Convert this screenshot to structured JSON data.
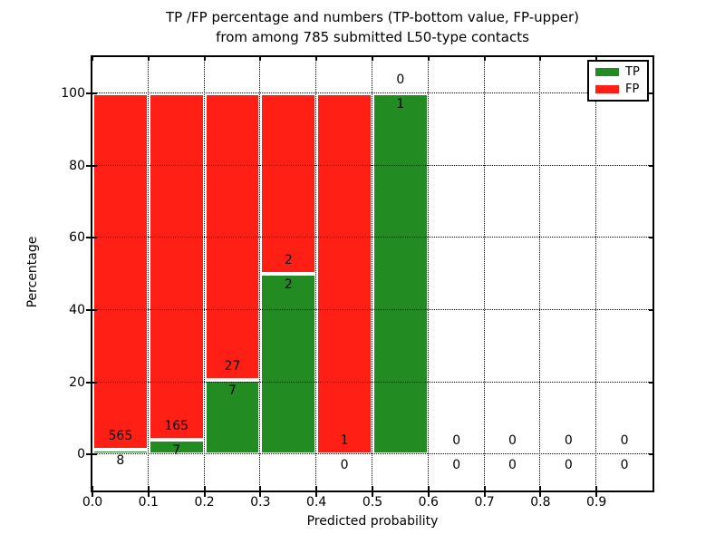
{
  "figure": {
    "title_line1": "TP /FP percentage and numbers (TP-bottom value, FP-upper)",
    "title_line2": "from among 785 submitted L50-type contacts",
    "xlabel": "Predicted probability",
    "ylabel": "Percentage"
  },
  "legend": {
    "position": "upper right",
    "items": [
      {
        "label": "TP",
        "color": "#228B22"
      },
      {
        "label": "FP",
        "color": "#FF1F14"
      }
    ]
  },
  "colors": {
    "tp": "#228B22",
    "fp": "#FF1F14",
    "grid": "#000000",
    "background": "#FFFFFF"
  },
  "chart_data": {
    "type": "bar",
    "subtype": "stacked-percentage-histogram",
    "title": "TP /FP percentage and numbers (TP-bottom value, FP-upper) from among 785 submitted L50-type contacts",
    "xlabel": "Predicted probability",
    "ylabel": "Percentage",
    "total_contacts": 785,
    "xlim": [
      0.0,
      1.0
    ],
    "ylim": [
      -10,
      110
    ],
    "xticks": [
      "0.0",
      "0.1",
      "0.2",
      "0.3",
      "0.4",
      "0.5",
      "0.6",
      "0.7",
      "0.8",
      "0.9"
    ],
    "yticks": [
      0,
      20,
      40,
      60,
      80,
      100
    ],
    "grid": true,
    "grid_style": "dotted",
    "legend_position": "upper right",
    "label_convention": "TP count below boundary, FP count above boundary",
    "bins": [
      {
        "range": [
          0.0,
          0.1
        ],
        "tp_count": 8,
        "fp_count": 565,
        "tp_pct": 1.4,
        "fp_pct": 98.6
      },
      {
        "range": [
          0.1,
          0.2
        ],
        "tp_count": 7,
        "fp_count": 165,
        "tp_pct": 4.07,
        "fp_pct": 95.93
      },
      {
        "range": [
          0.2,
          0.3
        ],
        "tp_count": 7,
        "fp_count": 27,
        "tp_pct": 20.59,
        "fp_pct": 79.41
      },
      {
        "range": [
          0.3,
          0.4
        ],
        "tp_count": 2,
        "fp_count": 2,
        "tp_pct": 50.0,
        "fp_pct": 50.0
      },
      {
        "range": [
          0.4,
          0.5
        ],
        "tp_count": 0,
        "fp_count": 1,
        "tp_pct": 0.0,
        "fp_pct": 100.0
      },
      {
        "range": [
          0.5,
          0.6
        ],
        "tp_count": 1,
        "fp_count": 0,
        "tp_pct": 100.0,
        "fp_pct": 0.0
      },
      {
        "range": [
          0.6,
          0.7
        ],
        "tp_count": 0,
        "fp_count": 0,
        "tp_pct": 0.0,
        "fp_pct": 0.0
      },
      {
        "range": [
          0.7,
          0.8
        ],
        "tp_count": 0,
        "fp_count": 0,
        "tp_pct": 0.0,
        "fp_pct": 0.0
      },
      {
        "range": [
          0.8,
          0.9
        ],
        "tp_count": 0,
        "fp_count": 0,
        "tp_pct": 0.0,
        "fp_pct": 0.0
      },
      {
        "range": [
          0.9,
          1.0
        ],
        "tp_count": 0,
        "fp_count": 0,
        "tp_pct": 0.0,
        "fp_pct": 0.0
      }
    ],
    "series": [
      {
        "name": "TP",
        "color": "#228B22",
        "values_pct": [
          1.4,
          4.07,
          20.59,
          50.0,
          0.0,
          100.0,
          0.0,
          0.0,
          0.0,
          0.0
        ]
      },
      {
        "name": "FP",
        "color": "#FF1F14",
        "values_pct": [
          98.6,
          95.93,
          79.41,
          50.0,
          100.0,
          0.0,
          0.0,
          0.0,
          0.0,
          0.0
        ]
      }
    ]
  }
}
